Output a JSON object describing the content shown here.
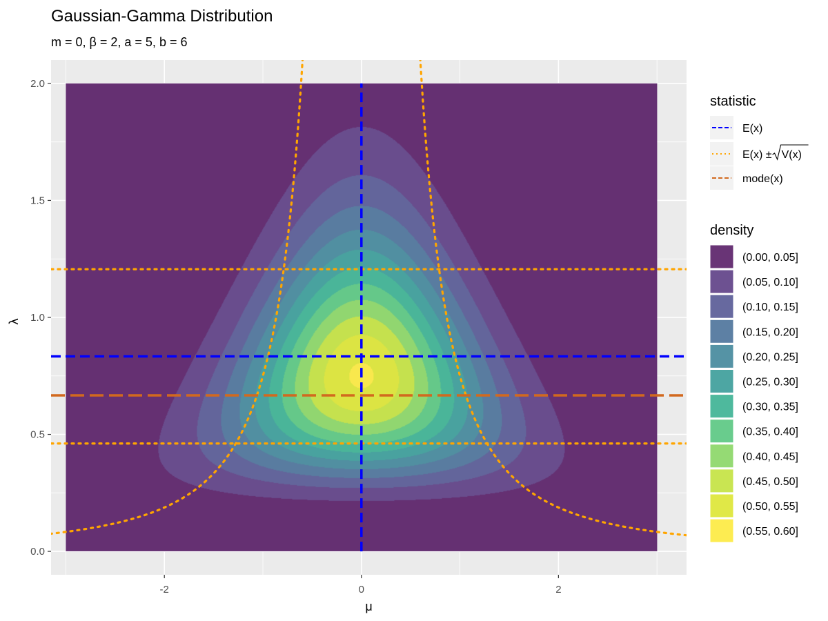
{
  "chart_data": {
    "type": "contour",
    "title": "Gaussian-Gamma Distribution",
    "subtitle": "m = 0, β = 2, a = 5, b = 6",
    "xlabel": "μ",
    "ylabel": "λ",
    "xlim": [
      -3.15,
      3.3
    ],
    "ylim": [
      -0.1,
      2.1
    ],
    "x_ticks": [
      -2,
      0,
      2
    ],
    "x_tick_labels": [
      "-2",
      "0",
      "2"
    ],
    "y_ticks": [
      0.0,
      0.5,
      1.0,
      1.5,
      2.0
    ],
    "y_tick_labels": [
      "0.0",
      "0.5",
      "1.0",
      "1.5",
      "2.0"
    ],
    "grid": true,
    "params": {
      "m": 0,
      "beta": 2,
      "a": 5,
      "b": 6
    },
    "data_extent": {
      "mu": [
        -3,
        3
      ],
      "lambda": [
        0,
        2
      ]
    },
    "statistic_lines": {
      "mean_mu": 0,
      "mean_lambda": 0.8333,
      "mode_lambda": 0.6667,
      "lambda_plus_sd": 1.206,
      "lambda_minus_sd": 0.461,
      "mu_sd_curve": "±sqrt(b / ((a-1)·β·λ))"
    },
    "legend_statistic": {
      "title": "statistic",
      "items": [
        {
          "label": "E(x)",
          "color": "#0000ff",
          "dash": "dashed"
        },
        {
          "label_prefix": "E(x) ± ",
          "label_sqrt": "V(x)",
          "color": "#ffa500",
          "dash": "dotted"
        },
        {
          "label": "mode(x)",
          "color": "#d2691e",
          "dash": "longdash"
        }
      ]
    },
    "legend_density": {
      "title": "density",
      "bins": [
        {
          "label": "(0.00, 0.05]",
          "color": "#440154"
        },
        {
          "label": "(0.05, 0.10]",
          "color": "#482576"
        },
        {
          "label": "(0.10, 0.15]",
          "color": "#414487"
        },
        {
          "label": "(0.15, 0.20]",
          "color": "#35608D"
        },
        {
          "label": "(0.20, 0.25]",
          "color": "#2A788E"
        },
        {
          "label": "(0.25, 0.30]",
          "color": "#21908C"
        },
        {
          "label": "(0.30, 0.35]",
          "color": "#22A884"
        },
        {
          "label": "(0.35, 0.40]",
          "color": "#43BF71"
        },
        {
          "label": "(0.40, 0.45]",
          "color": "#7AD151"
        },
        {
          "label": "(0.45, 0.50]",
          "color": "#BBDF27"
        },
        {
          "label": "(0.50, 0.55]",
          "color": "#D8E219"
        },
        {
          "label": "(0.55, 0.60]",
          "color": "#FDE725"
        }
      ],
      "fill_alpha": 0.8
    },
    "colors": {
      "panel_background": "#ebebeb",
      "grid": "#ffffff"
    }
  }
}
